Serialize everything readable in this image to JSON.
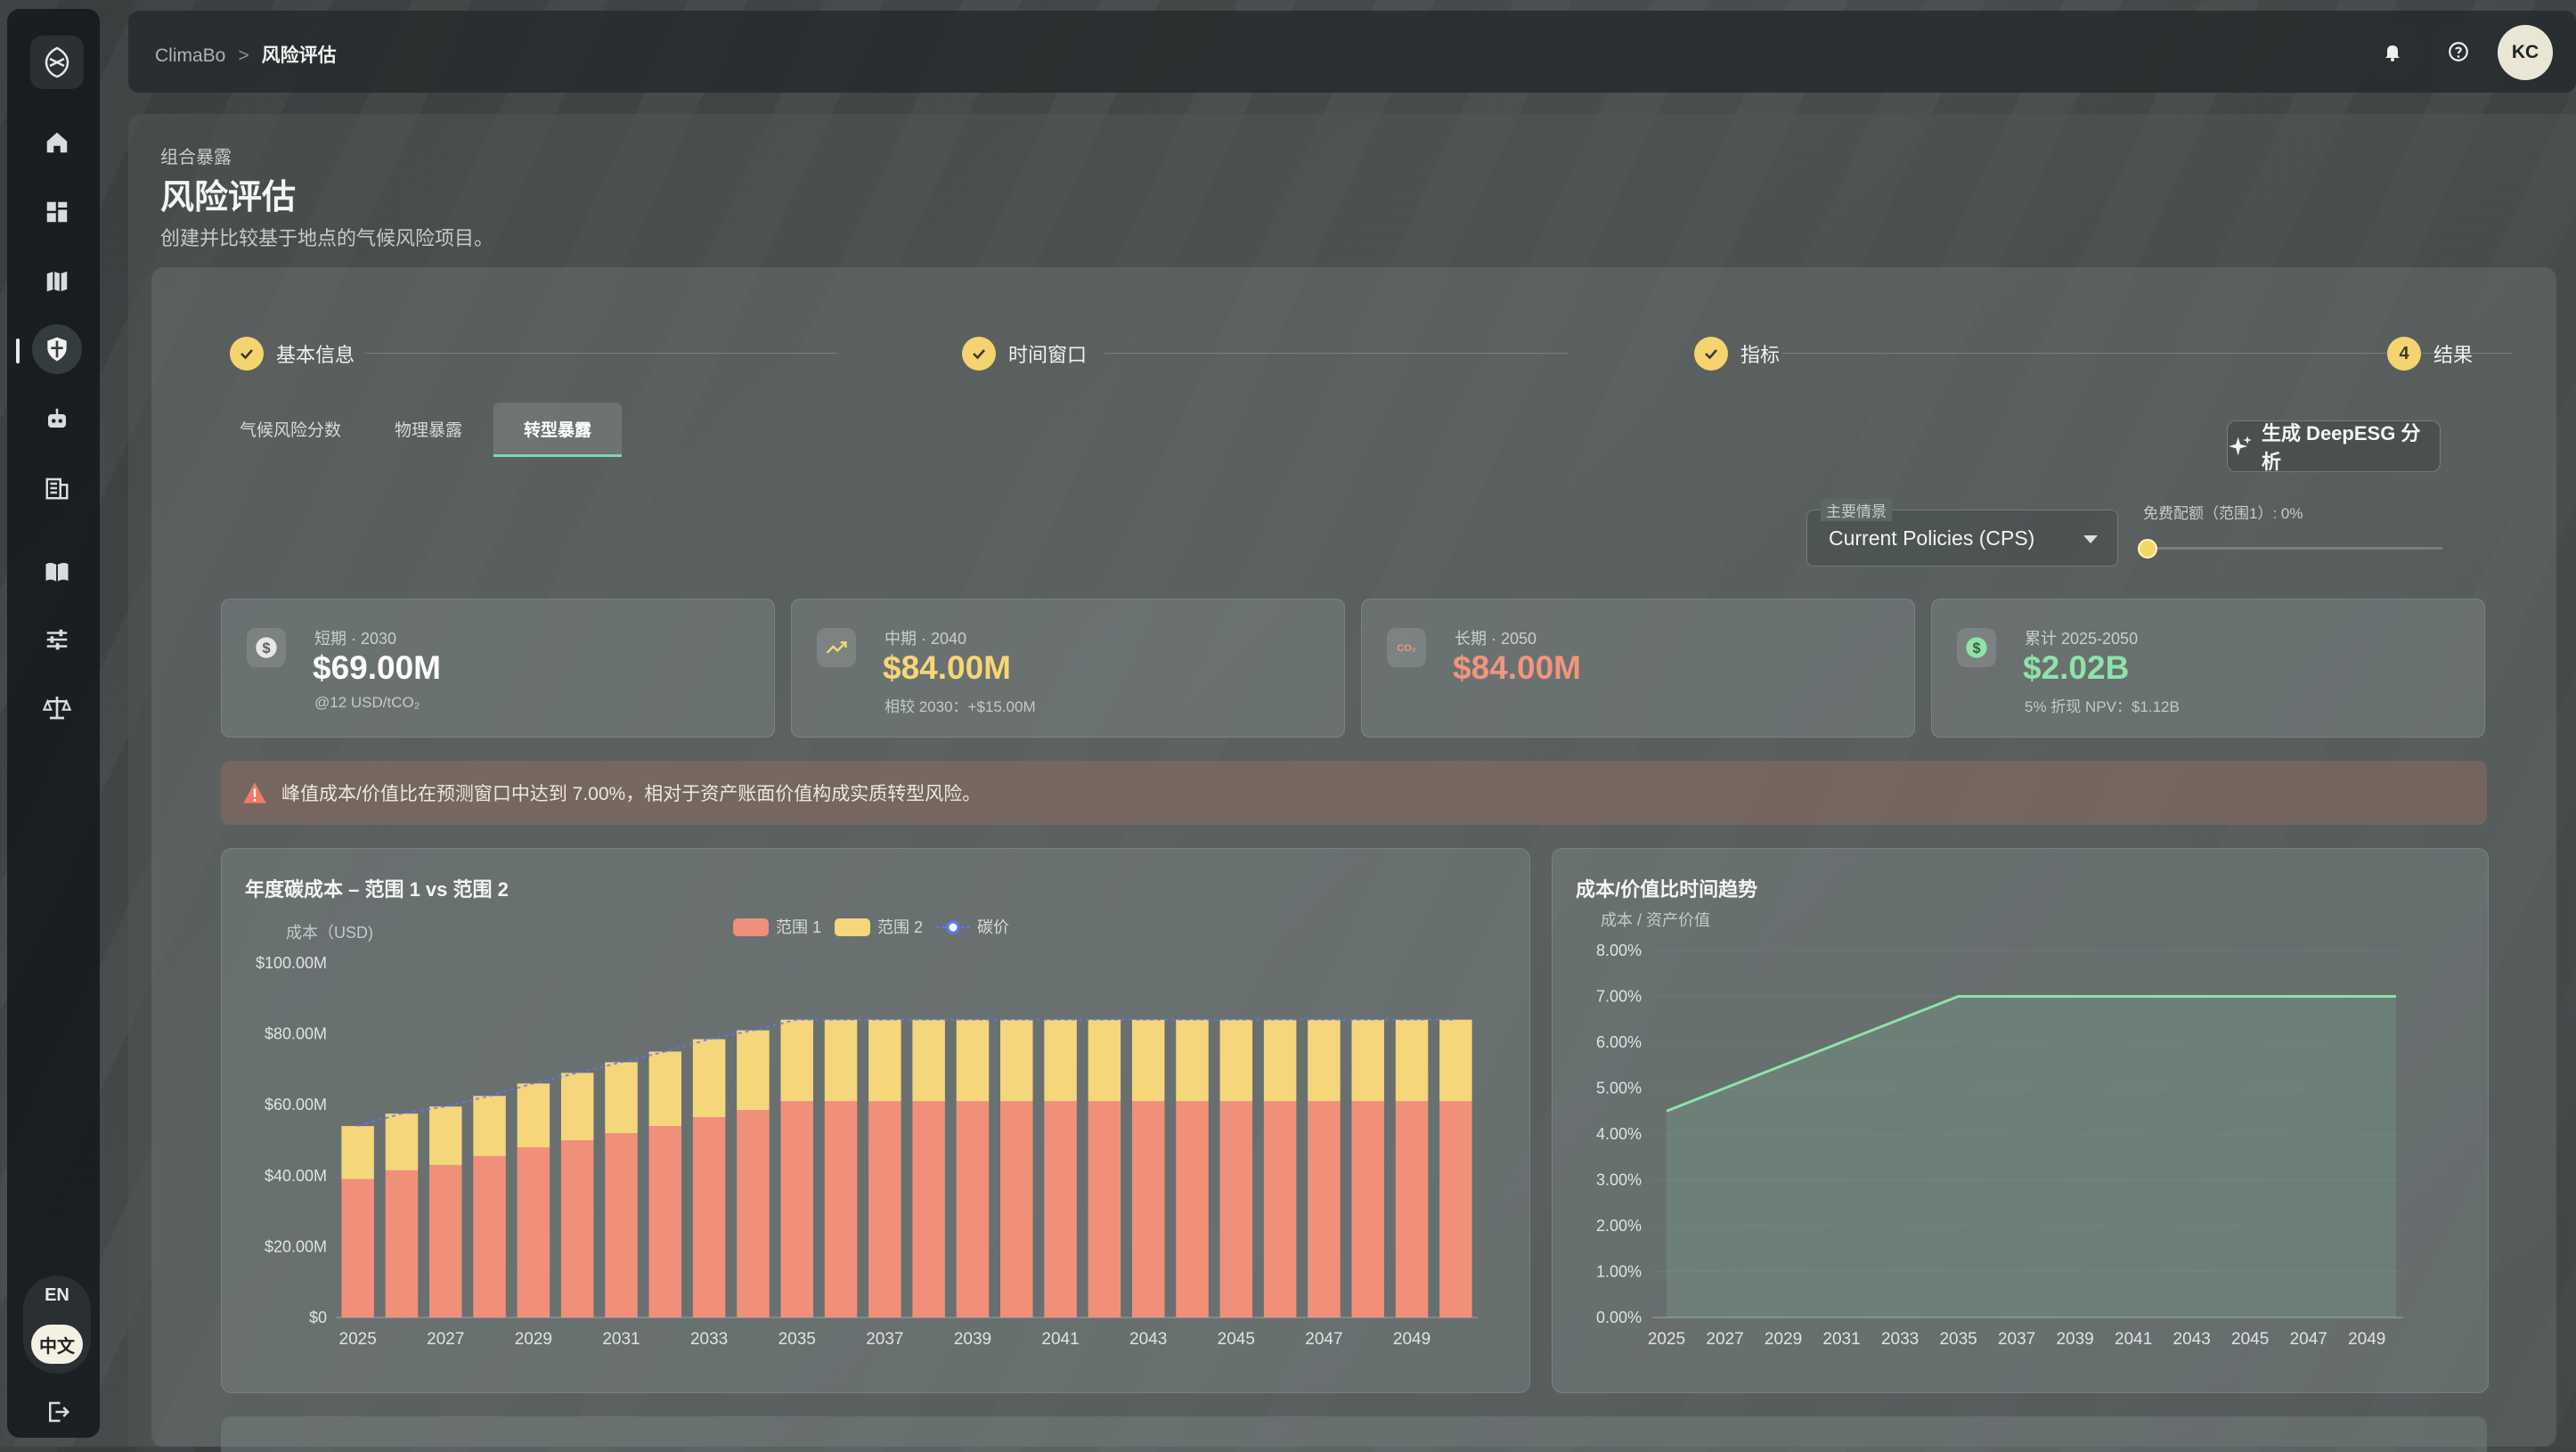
{
  "breadcrumb": {
    "root": "ClimaBo",
    "sep": ">",
    "current": "风险评估"
  },
  "user": {
    "initials": "KC"
  },
  "language": {
    "en": "EN",
    "zh": "中文"
  },
  "page": {
    "section": "组合暴露",
    "title": "风险评估",
    "subtitle": "创建并比较基于地点的气候风险项目。"
  },
  "stepper": [
    {
      "label": "基本信息",
      "state": "done"
    },
    {
      "label": "时间窗口",
      "state": "done"
    },
    {
      "label": "指标",
      "state": "done"
    },
    {
      "label": "结果",
      "state": "current",
      "number": "4"
    }
  ],
  "tabs": [
    "气候风险分数",
    "物理暴露",
    "转型暴露"
  ],
  "active_tab": "转型暴露",
  "deepesg_button": "生成 DeepESG 分析",
  "scenario": {
    "label": "主要情景",
    "value": "Current Policies (CPS)"
  },
  "allowance": {
    "label": "免费配额（范围1）: 0%",
    "value_percent": 0
  },
  "kpis": [
    {
      "label": "短期 · 2030",
      "value": "$69.00M",
      "sub": "@12 USD/tCO₂",
      "color": "#ffffff",
      "icon": "dollar-icon"
    },
    {
      "label": "中期 · 2040",
      "value": "$84.00M",
      "sub": "相较 2030：+$15.00M",
      "color": "#f6d774",
      "icon": "trend-up-icon"
    },
    {
      "label": "长期 · 2050",
      "value": "$84.00M",
      "sub": "",
      "color": "#f1957d",
      "icon": "co2-icon"
    },
    {
      "label": "累计 2025-2050",
      "value": "$2.02B",
      "sub": "5% 折现 NPV：$1.12B",
      "color": "#8ee3a8",
      "icon": "dollar-icon"
    }
  ],
  "alert": {
    "text": "峰值成本/价值比在预测窗口中达到 7.00%，相对于资产账面价值构成实质转型风险。",
    "color": "#f07a66"
  },
  "chart_data": [
    {
      "type": "bar",
      "title": "年度碳成本 – 范围 1 vs 范围 2",
      "ylabel": "成本（USD)",
      "stacked": true,
      "x": [
        2025,
        2026,
        2027,
        2028,
        2029,
        2030,
        2031,
        2032,
        2033,
        2034,
        2035,
        2036,
        2037,
        2038,
        2039,
        2040,
        2041,
        2042,
        2043,
        2044,
        2045,
        2046,
        2047,
        2048,
        2049,
        2050
      ],
      "x_tick_labels": [
        "2025",
        "2027",
        "2029",
        "2031",
        "2033",
        "2035",
        "2037",
        "2039",
        "2041",
        "2043",
        "2045",
        "2047",
        "2049"
      ],
      "y_tick_labels": [
        "$0",
        "$20.00M",
        "$40.00M",
        "$60.00M",
        "$80.00M",
        "$100.00M"
      ],
      "ylim": [
        0,
        100
      ],
      "legend": [
        "范围 1",
        "范围 2",
        "碳价"
      ],
      "series": [
        {
          "name": "范围 1",
          "color": "#f0907a",
          "values": [
            39,
            41.5,
            43,
            45.5,
            48,
            50,
            52,
            54,
            56.5,
            58.5,
            61,
            61,
            61,
            61,
            61,
            61,
            61,
            61,
            61,
            61,
            61,
            61,
            61,
            61,
            61,
            61
          ]
        },
        {
          "name": "范围 2",
          "color": "#f5d67a",
          "values": [
            15,
            16,
            16.5,
            17,
            18,
            19,
            20,
            21,
            22,
            22.5,
            23,
            23,
            23,
            23,
            23,
            23,
            23,
            23,
            23,
            23,
            23,
            23,
            23,
            23,
            23,
            23
          ]
        }
      ],
      "line_series": {
        "name": "碳价",
        "color": "#5a78ff"
      }
    },
    {
      "type": "area",
      "title": "成本/价值比时间趋势",
      "ylabel": "成本 / 资产价值",
      "x": [
        2025,
        2026,
        2027,
        2028,
        2029,
        2030,
        2031,
        2032,
        2033,
        2034,
        2035,
        2036,
        2037,
        2038,
        2039,
        2040,
        2041,
        2042,
        2043,
        2044,
        2045,
        2046,
        2047,
        2048,
        2049,
        2050
      ],
      "x_tick_labels": [
        "2025",
        "2027",
        "2029",
        "2031",
        "2033",
        "2035",
        "2037",
        "2039",
        "2041",
        "2043",
        "2045",
        "2047",
        "2049"
      ],
      "y_tick_labels": [
        "0.00%",
        "1.00%",
        "2.00%",
        "3.00%",
        "4.00%",
        "5.00%",
        "6.00%",
        "7.00%",
        "8.00%"
      ],
      "ylim": [
        0,
        8
      ],
      "series": [
        {
          "color": "#8ee3a8",
          "values": [
            4.5,
            4.75,
            5.0,
            5.25,
            5.5,
            5.75,
            6.0,
            6.25,
            6.5,
            6.75,
            7.0,
            7.0,
            7.0,
            7.0,
            7.0,
            7.0,
            7.0,
            7.0,
            7.0,
            7.0,
            7.0,
            7.0,
            7.0,
            7.0,
            7.0,
            7.0
          ]
        }
      ]
    }
  ]
}
